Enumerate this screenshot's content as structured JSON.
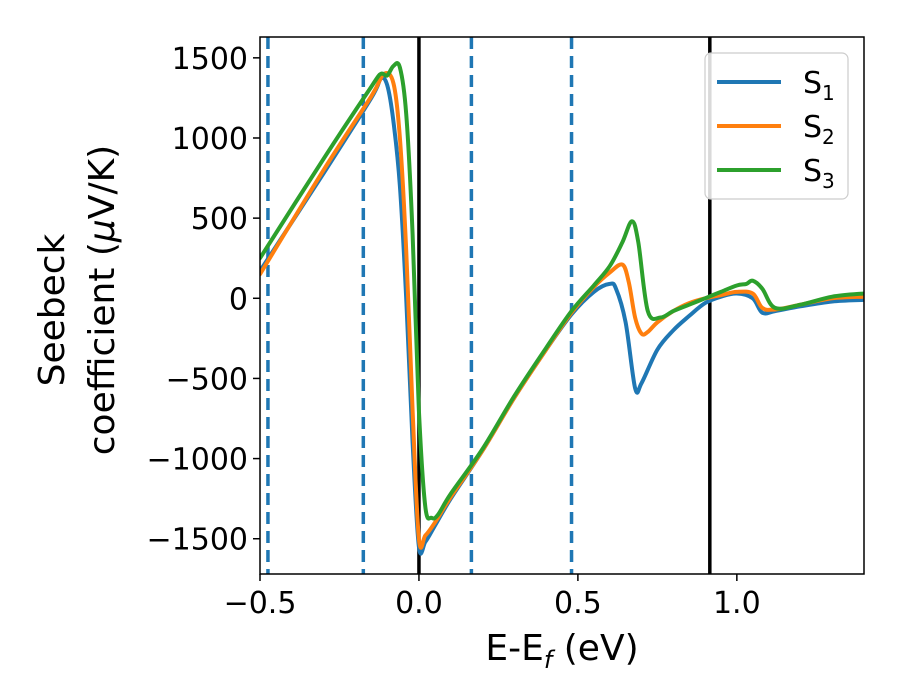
{
  "chart_data": {
    "type": "line",
    "xlabel": "E-E",
    "xlabel_sub": "f",
    "xlabel_unit": " (eV)",
    "ylabel_line1": "Seebeck",
    "ylabel_line2": "coefficient  (",
    "ylabel_mu": "μ",
    "ylabel_unit": "V/K)",
    "xlim": [
      -0.5,
      1.4
    ],
    "ylim": [
      -1720,
      1630
    ],
    "xticks": [
      -0.5,
      0.0,
      0.5,
      1.0
    ],
    "xtick_labels": [
      "−0.5",
      "0.0",
      "0.5",
      "1.0"
    ],
    "yticks": [
      -1500,
      -1000,
      -500,
      0,
      500,
      1000,
      1500
    ],
    "ytick_labels": [
      "−1500",
      "−1000",
      "−500",
      "0",
      "500",
      "1000",
      "1500"
    ],
    "grid": false,
    "legend_position": "top-right",
    "vlines_dashed": {
      "x": [
        -0.475,
        -0.175,
        0.165,
        0.48
      ],
      "color": "#1f77b4"
    },
    "vlines_solid": {
      "x": [
        0.0,
        0.915
      ],
      "color": "#000000"
    },
    "series": [
      {
        "name": "S",
        "sub": "1",
        "color": "#1f77b4",
        "x": [
          -0.5,
          -0.3,
          -0.15,
          -0.12,
          -0.1,
          -0.08,
          -0.06,
          -0.04,
          -0.02,
          0.0,
          0.02,
          0.05,
          0.1,
          0.2,
          0.3,
          0.4,
          0.48,
          0.55,
          0.6,
          0.62,
          0.65,
          0.68,
          0.7,
          0.75,
          0.8,
          0.85,
          0.9,
          0.95,
          1.0,
          1.05,
          1.08,
          1.12,
          1.2,
          1.3,
          1.4
        ],
        "y": [
          170,
          780,
          1250,
          1370,
          1330,
          1100,
          700,
          0,
          -900,
          -1550,
          -1520,
          -1420,
          -1250,
          -950,
          -620,
          -320,
          -100,
          40,
          90,
          60,
          -150,
          -560,
          -530,
          -320,
          -200,
          -110,
          -30,
          10,
          30,
          0,
          -90,
          -80,
          -50,
          -20,
          -10
        ]
      },
      {
        "name": "S",
        "sub": "2",
        "color": "#ff7f0e",
        "x": [
          -0.5,
          -0.3,
          -0.15,
          -0.11,
          -0.08,
          -0.06,
          -0.04,
          -0.02,
          0.0,
          0.02,
          0.05,
          0.1,
          0.2,
          0.3,
          0.4,
          0.48,
          0.55,
          0.6,
          0.64,
          0.66,
          0.68,
          0.7,
          0.72,
          0.75,
          0.8,
          0.85,
          0.9,
          0.95,
          1.0,
          1.05,
          1.08,
          1.12,
          1.2,
          1.3,
          1.4
        ],
        "y": [
          150,
          800,
          1260,
          1400,
          1340,
          1000,
          300,
          -700,
          -1500,
          -1480,
          -1400,
          -1240,
          -950,
          -620,
          -320,
          -90,
          70,
          160,
          210,
          100,
          -120,
          -220,
          -210,
          -150,
          -80,
          -30,
          0,
          20,
          40,
          30,
          -60,
          -70,
          -40,
          0,
          10
        ]
      },
      {
        "name": "S",
        "sub": "3",
        "color": "#2ca02c",
        "x": [
          -0.5,
          -0.3,
          -0.15,
          -0.12,
          -0.1,
          -0.08,
          -0.06,
          -0.04,
          -0.02,
          0.0,
          0.02,
          0.04,
          0.06,
          0.1,
          0.2,
          0.3,
          0.4,
          0.48,
          0.55,
          0.6,
          0.64,
          0.67,
          0.69,
          0.72,
          0.76,
          0.8,
          0.85,
          0.9,
          0.95,
          1.0,
          1.03,
          1.05,
          1.08,
          1.12,
          1.2,
          1.3,
          1.4
        ],
        "y": [
          250,
          870,
          1320,
          1400,
          1390,
          1450,
          1440,
          1150,
          400,
          -700,
          -1300,
          -1370,
          -1350,
          -1220,
          -940,
          -610,
          -310,
          -80,
          80,
          200,
          350,
          480,
          350,
          -80,
          -120,
          -80,
          -40,
          0,
          40,
          80,
          90,
          110,
          60,
          -60,
          -40,
          10,
          30
        ]
      }
    ]
  }
}
